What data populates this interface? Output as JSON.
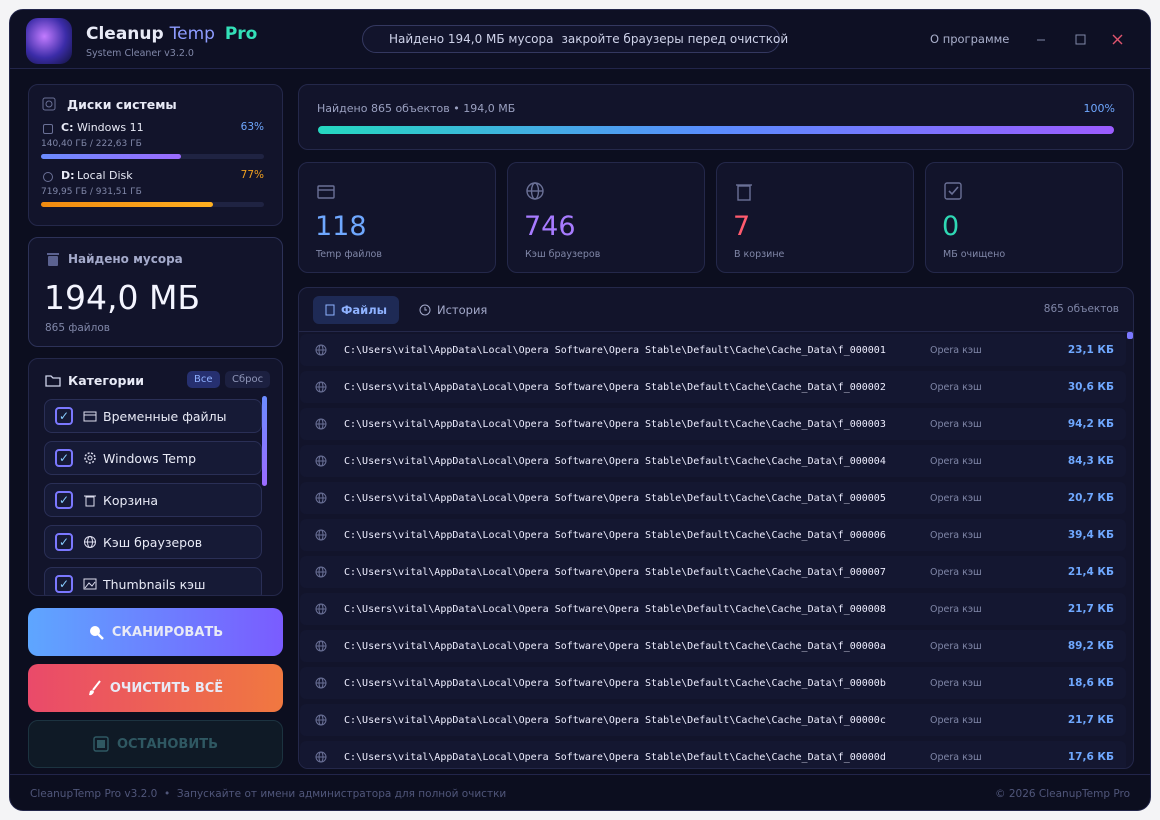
{
  "app": {
    "name": "Cleanup",
    "name_accent": "Temp",
    "edition": "Pro",
    "subtitle": "System Cleaner v3.2.0"
  },
  "status": {
    "found": "Найдено 194,0 МБ мусора",
    "warning": "закройте браузеры перед очисткой"
  },
  "menu": {
    "about": "О программе"
  },
  "disks": {
    "title": "Диски системы",
    "items": [
      {
        "letter": "C:",
        "name": "Windows 11",
        "percent": "63%",
        "usage": "140,40 ГБ / 222,63 ГБ"
      },
      {
        "letter": "D:",
        "name": "Local Disk",
        "percent": "77%",
        "usage": "719,95 ГБ / 931,51 ГБ"
      }
    ]
  },
  "junk": {
    "title": "Найдено мусора",
    "size": "194,0 МБ",
    "files": "865 файлов"
  },
  "categories": {
    "title": "Категории",
    "all": "Все",
    "reset": "Сброс",
    "items": [
      "Временные файлы",
      "Windows Temp",
      "Корзина",
      "Кэш браузеров",
      "Thumbnails кэш"
    ]
  },
  "actions": {
    "scan": "СКАНИРОВАТЬ",
    "clean": "ОЧИСТИТЬ ВСЁ",
    "stop": "ОСТАНОВИТЬ"
  },
  "progress": {
    "label": "Найдено 865 объектов • 194,0 МБ",
    "percent": "100%"
  },
  "stats": [
    {
      "value": "118",
      "label": "Temp файлов"
    },
    {
      "value": "746",
      "label": "Кэш браузеров"
    },
    {
      "value": "7",
      "label": "В корзине"
    },
    {
      "value": "0",
      "label": "МБ очищено"
    }
  ],
  "files": {
    "tabs": [
      "Файлы",
      "История"
    ],
    "count": "865 объектов",
    "rows": [
      {
        "path": "C:\\Users\\vital\\AppData\\Local\\Opera Software\\Opera Stable\\Default\\Cache\\Cache_Data\\f_000001",
        "type": "Opera кэш",
        "size": "23,1 КБ"
      },
      {
        "path": "C:\\Users\\vital\\AppData\\Local\\Opera Software\\Opera Stable\\Default\\Cache\\Cache_Data\\f_000002",
        "type": "Opera кэш",
        "size": "30,6 КБ"
      },
      {
        "path": "C:\\Users\\vital\\AppData\\Local\\Opera Software\\Opera Stable\\Default\\Cache\\Cache_Data\\f_000003",
        "type": "Opera кэш",
        "size": "94,2 КБ"
      },
      {
        "path": "C:\\Users\\vital\\AppData\\Local\\Opera Software\\Opera Stable\\Default\\Cache\\Cache_Data\\f_000004",
        "type": "Opera кэш",
        "size": "84,3 КБ"
      },
      {
        "path": "C:\\Users\\vital\\AppData\\Local\\Opera Software\\Opera Stable\\Default\\Cache\\Cache_Data\\f_000005",
        "type": "Opera кэш",
        "size": "20,7 КБ"
      },
      {
        "path": "C:\\Users\\vital\\AppData\\Local\\Opera Software\\Opera Stable\\Default\\Cache\\Cache_Data\\f_000006",
        "type": "Opera кэш",
        "size": "39,4 КБ"
      },
      {
        "path": "C:\\Users\\vital\\AppData\\Local\\Opera Software\\Opera Stable\\Default\\Cache\\Cache_Data\\f_000007",
        "type": "Opera кэш",
        "size": "21,4 КБ"
      },
      {
        "path": "C:\\Users\\vital\\AppData\\Local\\Opera Software\\Opera Stable\\Default\\Cache\\Cache_Data\\f_000008",
        "type": "Opera кэш",
        "size": "21,7 КБ"
      },
      {
        "path": "C:\\Users\\vital\\AppData\\Local\\Opera Software\\Opera Stable\\Default\\Cache\\Cache_Data\\f_00000a",
        "type": "Opera кэш",
        "size": "89,2 КБ"
      },
      {
        "path": "C:\\Users\\vital\\AppData\\Local\\Opera Software\\Opera Stable\\Default\\Cache\\Cache_Data\\f_00000b",
        "type": "Opera кэш",
        "size": "18,6 КБ"
      },
      {
        "path": "C:\\Users\\vital\\AppData\\Local\\Opera Software\\Opera Stable\\Default\\Cache\\Cache_Data\\f_00000c",
        "type": "Opera кэш",
        "size": "21,7 КБ"
      },
      {
        "path": "C:\\Users\\vital\\AppData\\Local\\Opera Software\\Opera Stable\\Default\\Cache\\Cache_Data\\f_00000d",
        "type": "Opera кэш",
        "size": "17,6 КБ"
      }
    ]
  },
  "footer": {
    "version": "CleanupTemp Pro v3.2.0",
    "hint": "Запускайте от имени администратора для полной очистки",
    "copyright": "© 2026 CleanupTemp Pro"
  }
}
